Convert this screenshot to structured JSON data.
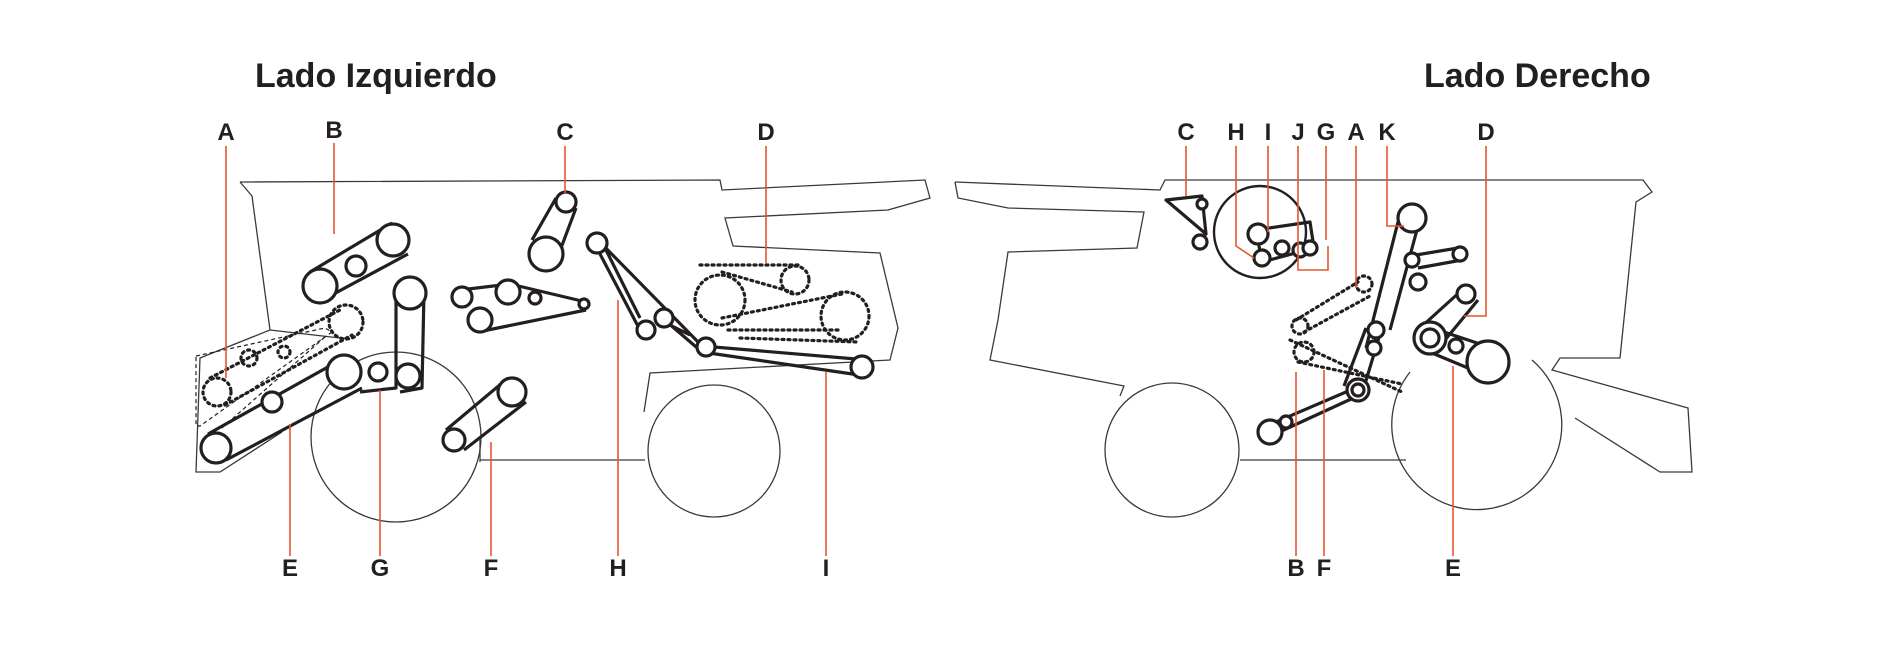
{
  "left": {
    "title": "Lado Izquierdo",
    "labels": {
      "A": "A",
      "B": "B",
      "C": "C",
      "D": "D",
      "E": "E",
      "G": "G",
      "F": "F",
      "H": "H",
      "I": "I"
    }
  },
  "right": {
    "title": "Lado Derecho",
    "labels": {
      "C": "C",
      "H": "H",
      "I": "I",
      "J": "J",
      "G": "G",
      "A": "A",
      "K": "K",
      "D": "D",
      "B": "B",
      "F": "F",
      "E": "E"
    }
  },
  "colors": {
    "leader": "#e4572e",
    "ink": "#231f20",
    "outline": "#3a3a3a"
  }
}
